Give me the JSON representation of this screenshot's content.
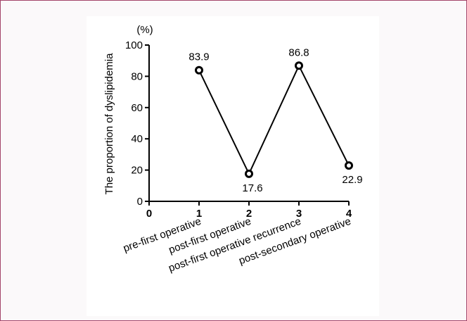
{
  "colors": {
    "frame_border": "#a3466a",
    "frame_background": "#fbf9fa",
    "ink": "#000000"
  },
  "chart_data": {
    "type": "line",
    "ylabel": "The proportion of dyslipidemia",
    "unit": "(%)",
    "ylim": [
      0,
      100
    ],
    "y_ticks": [
      "0",
      "20",
      "40",
      "60",
      "80",
      "100"
    ],
    "xlim": [
      0,
      4
    ],
    "x_ticks": [
      "0",
      "1",
      "2",
      "3",
      "4"
    ],
    "x": [
      1,
      2,
      3,
      4
    ],
    "categories": [
      "pre-first operative",
      "post-first operative",
      "post-first operative recurrence",
      "post-secondary operative"
    ],
    "values": [
      83.9,
      17.6,
      86.8,
      22.9
    ],
    "data_labels": [
      "83.9",
      "17.6",
      "86.8",
      "22.9"
    ],
    "grid": false,
    "legend": "none"
  }
}
